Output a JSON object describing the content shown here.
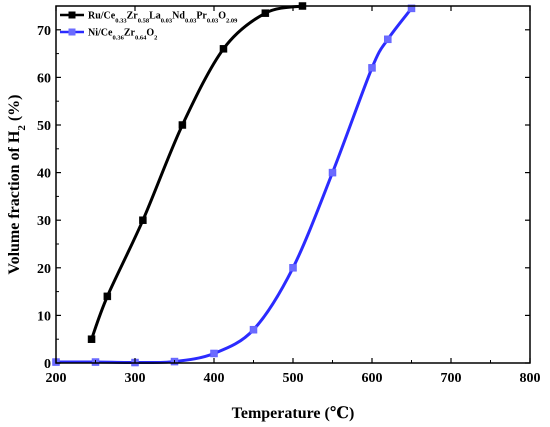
{
  "chart_data": {
    "type": "line",
    "xlabel": "Temperature (℃)",
    "ylabel": {
      "main": "Volume fraction of H",
      "sub": "2",
      "unit": " (%)"
    },
    "xlim": [
      200,
      800
    ],
    "ylim": [
      0,
      75
    ],
    "xticks": [
      200,
      300,
      400,
      500,
      600,
      700,
      800
    ],
    "yticks": [
      0,
      10,
      20,
      30,
      40,
      50,
      60,
      70
    ],
    "grid": false,
    "legend_position": "top-left",
    "series": [
      {
        "name_parts": [
          {
            "t": "Ru/Ce"
          },
          {
            "t": "0.33",
            "sub": true
          },
          {
            "t": "Zr"
          },
          {
            "t": "0.58",
            "sub": true
          },
          {
            "t": "La"
          },
          {
            "t": "0.03",
            "sub": true
          },
          {
            "t": "Nd"
          },
          {
            "t": "0.03",
            "sub": true
          },
          {
            "t": "Pr"
          },
          {
            "t": "0.03",
            "sub": true
          },
          {
            "t": "O"
          },
          {
            "t": "2.09",
            "sub": true
          }
        ],
        "color": "#000000",
        "marker": "square",
        "points": [
          [
            245,
            5
          ],
          [
            265,
            14
          ],
          [
            310,
            30
          ],
          [
            360,
            50
          ],
          [
            412,
            66
          ],
          [
            465,
            73.5
          ],
          [
            512,
            75
          ]
        ]
      },
      {
        "name_parts": [
          {
            "t": "Ni/Ce"
          },
          {
            "t": "0.36",
            "sub": true
          },
          {
            "t": "Zr"
          },
          {
            "t": "0.64",
            "sub": true
          },
          {
            "t": "O"
          },
          {
            "t": "2",
            "sub": true
          }
        ],
        "color": "#2b2bff",
        "marker": "square",
        "points": [
          [
            200,
            0.2
          ],
          [
            250,
            0.2
          ],
          [
            300,
            0.1
          ],
          [
            350,
            0.3
          ],
          [
            400,
            2
          ],
          [
            450,
            7
          ],
          [
            500,
            20
          ],
          [
            550,
            40
          ],
          [
            600,
            62
          ],
          [
            620,
            68
          ],
          [
            650,
            74.5
          ]
        ]
      }
    ]
  }
}
